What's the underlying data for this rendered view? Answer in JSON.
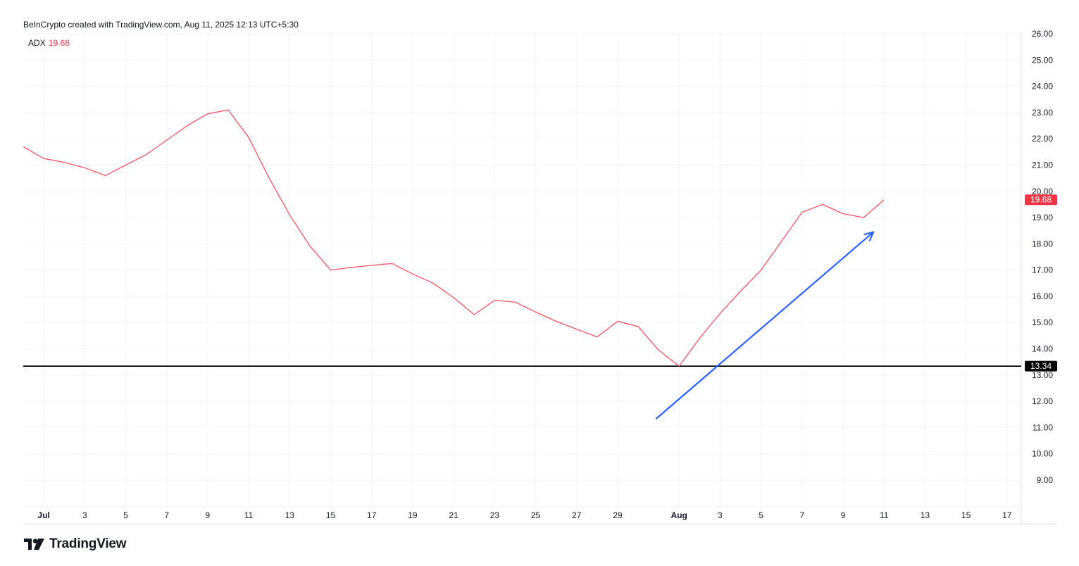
{
  "header": {
    "credit": "BeInCrypto created with TradingView.com, Aug 11, 2025 12:13 UTC+5:30"
  },
  "brand": {
    "name": "TradingView",
    "logo_icon": "tradingview-logo-icon"
  },
  "legend": {
    "name": "ADX",
    "value": "19.68"
  },
  "colors": {
    "adx_line": "#f7525f",
    "badge": "#f23645",
    "level_line": "#000000",
    "arrow": "#2962ff",
    "grid": "#f0f3fa",
    "axis_text": "#131722"
  },
  "chart_data": {
    "type": "line",
    "title": "",
    "xlabel": "",
    "ylabel": "",
    "ylim": [
      8.0,
      26.0
    ],
    "y_ticks": [
      "26.00",
      "25.00",
      "24.00",
      "23.00",
      "22.00",
      "21.00",
      "20.00",
      "19.00",
      "18.00",
      "17.00",
      "16.00",
      "15.00",
      "14.00",
      "13.00",
      "12.00",
      "11.00",
      "10.00",
      "9.00"
    ],
    "x_ticks": [
      {
        "date": "2025-07-01",
        "label": "Jul",
        "bold": true
      },
      {
        "date": "2025-07-03",
        "label": "3"
      },
      {
        "date": "2025-07-05",
        "label": "5"
      },
      {
        "date": "2025-07-07",
        "label": "7"
      },
      {
        "date": "2025-07-09",
        "label": "9"
      },
      {
        "date": "2025-07-11",
        "label": "11"
      },
      {
        "date": "2025-07-13",
        "label": "13"
      },
      {
        "date": "2025-07-15",
        "label": "15"
      },
      {
        "date": "2025-07-17",
        "label": "17"
      },
      {
        "date": "2025-07-19",
        "label": "19"
      },
      {
        "date": "2025-07-21",
        "label": "21"
      },
      {
        "date": "2025-07-23",
        "label": "23"
      },
      {
        "date": "2025-07-25",
        "label": "25"
      },
      {
        "date": "2025-07-27",
        "label": "27"
      },
      {
        "date": "2025-07-29",
        "label": "29"
      },
      {
        "date": "2025-08-01",
        "label": "Aug",
        "bold": true
      },
      {
        "date": "2025-08-03",
        "label": "3"
      },
      {
        "date": "2025-08-05",
        "label": "5"
      },
      {
        "date": "2025-08-07",
        "label": "7"
      },
      {
        "date": "2025-08-09",
        "label": "9"
      },
      {
        "date": "2025-08-11",
        "label": "11"
      },
      {
        "date": "2025-08-13",
        "label": "13"
      },
      {
        "date": "2025-08-15",
        "label": "15"
      },
      {
        "date": "2025-08-17",
        "label": "17"
      }
    ],
    "x_range": [
      "2025-06-30",
      "2025-08-17"
    ],
    "series": [
      {
        "name": "ADX",
        "points": [
          [
            "2025-06-30",
            21.7
          ],
          [
            "2025-07-01",
            21.25
          ],
          [
            "2025-07-02",
            21.1
          ],
          [
            "2025-07-03",
            20.9
          ],
          [
            "2025-07-04",
            20.6
          ],
          [
            "2025-07-05",
            21.0
          ],
          [
            "2025-07-06",
            21.4
          ],
          [
            "2025-07-07",
            21.95
          ],
          [
            "2025-07-08",
            22.5
          ],
          [
            "2025-07-09",
            22.95
          ],
          [
            "2025-07-10",
            23.1
          ],
          [
            "2025-07-11",
            22.05
          ],
          [
            "2025-07-12",
            20.5
          ],
          [
            "2025-07-13",
            19.1
          ],
          [
            "2025-07-14",
            17.9
          ],
          [
            "2025-07-15",
            17.0
          ],
          [
            "2025-07-16",
            17.1
          ],
          [
            "2025-07-17",
            17.18
          ],
          [
            "2025-07-18",
            17.25
          ],
          [
            "2025-07-19",
            16.85
          ],
          [
            "2025-07-20",
            16.5
          ],
          [
            "2025-07-21",
            15.95
          ],
          [
            "2025-07-22",
            15.3
          ],
          [
            "2025-07-23",
            15.85
          ],
          [
            "2025-07-24",
            15.78
          ],
          [
            "2025-07-25",
            15.4
          ],
          [
            "2025-07-26",
            15.05
          ],
          [
            "2025-07-27",
            14.75
          ],
          [
            "2025-07-28",
            14.45
          ],
          [
            "2025-07-29",
            15.05
          ],
          [
            "2025-07-30",
            14.85
          ],
          [
            "2025-07-31",
            13.95
          ],
          [
            "2025-08-01",
            13.34
          ],
          [
            "2025-08-02",
            14.4
          ],
          [
            "2025-08-03",
            15.35
          ],
          [
            "2025-08-04",
            16.2
          ],
          [
            "2025-08-05",
            17.0
          ],
          [
            "2025-08-06",
            18.1
          ],
          [
            "2025-08-07",
            19.2
          ],
          [
            "2025-08-08",
            19.5
          ],
          [
            "2025-08-09",
            19.15
          ],
          [
            "2025-08-10",
            19.0
          ],
          [
            "2025-08-11",
            19.68
          ]
        ]
      }
    ],
    "level_line": {
      "value": 13.34,
      "label": "13.34"
    },
    "last_value_label": "19.68",
    "annotation_arrow": {
      "from": [
        "2025-07-31",
        11.35
      ],
      "to": [
        "2025-08-10",
        18.45
      ]
    },
    "grid": true
  }
}
